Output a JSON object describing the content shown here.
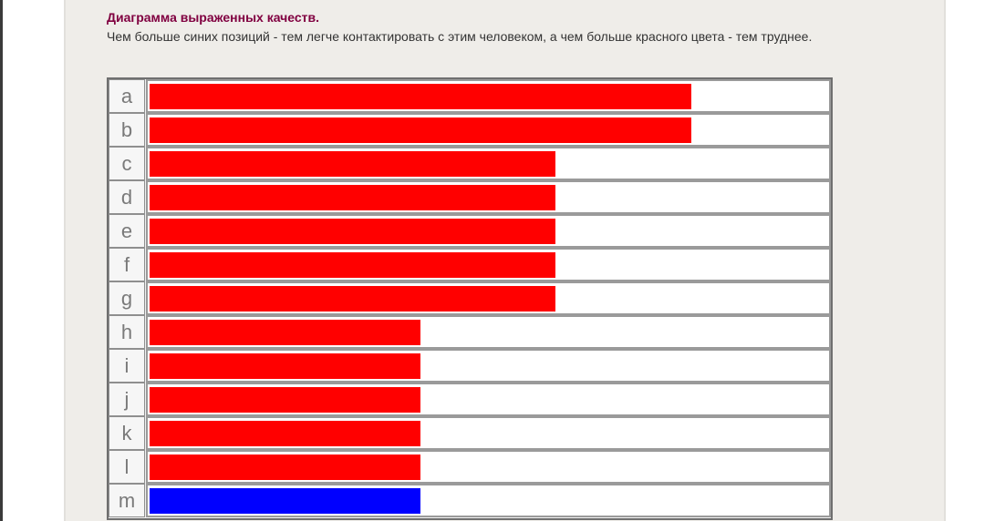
{
  "header": {
    "title": "Диаграмма выраженных качеств.",
    "subtitle": "Чем больше синих позиций - тем легче контактировать с этим человеком, а чем больше красного цвета - тем труднее."
  },
  "colors": {
    "red": "#ff0000",
    "blue": "#0000ff",
    "title": "#800040"
  },
  "chart_data": {
    "type": "bar",
    "orientation": "horizontal",
    "categories": [
      "a",
      "b",
      "c",
      "d",
      "e",
      "f",
      "g",
      "h",
      "i",
      "j",
      "k",
      "l",
      "m"
    ],
    "values": [
      80,
      80,
      60,
      60,
      60,
      60,
      60,
      40,
      40,
      40,
      40,
      40,
      40
    ],
    "bar_colors": [
      "red",
      "red",
      "red",
      "red",
      "red",
      "red",
      "red",
      "red",
      "red",
      "red",
      "red",
      "red",
      "blue"
    ],
    "xlim": [
      0,
      100
    ],
    "grid": false,
    "legend": "none"
  }
}
